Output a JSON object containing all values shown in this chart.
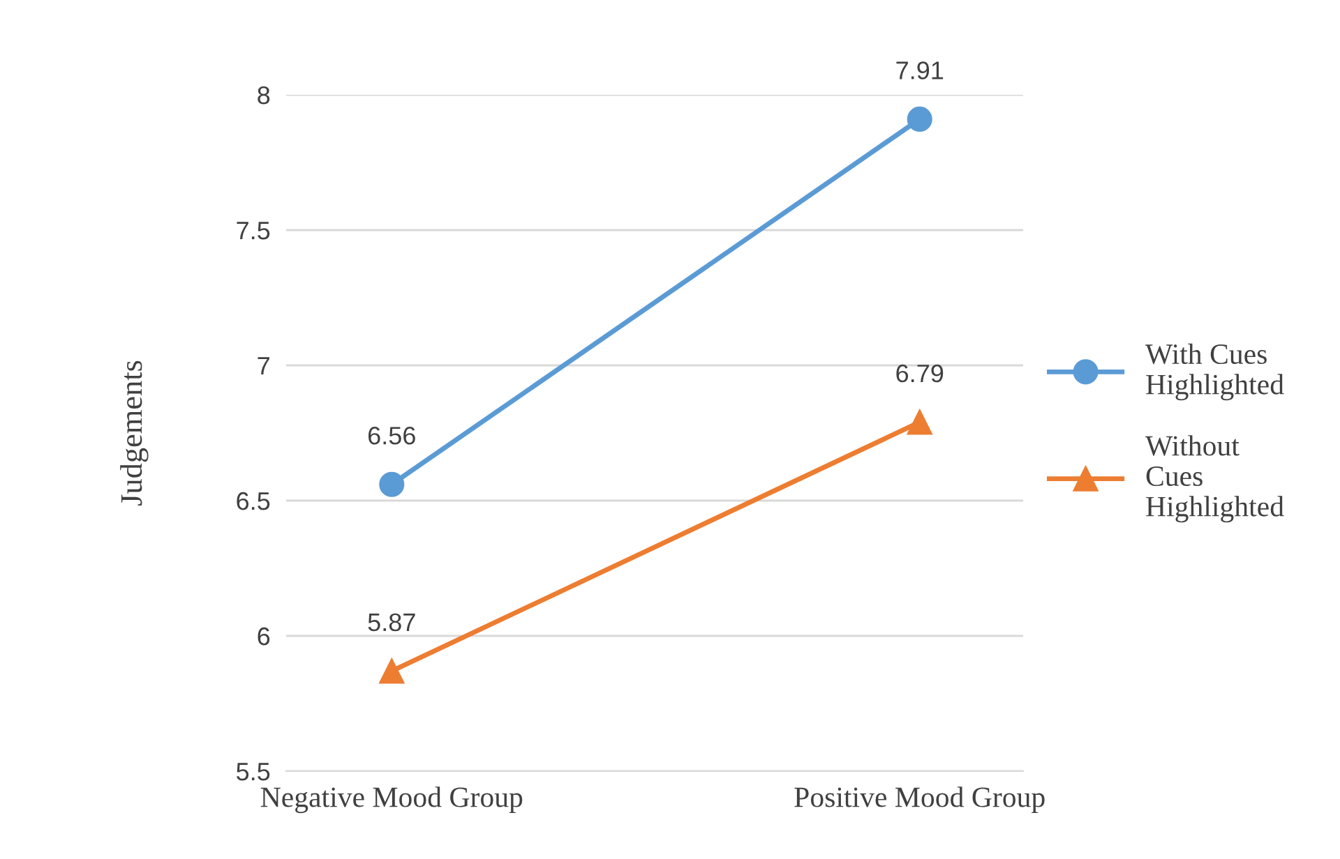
{
  "chart_data": {
    "type": "line",
    "ylabel": "Judgements",
    "categories": [
      "Negative Mood Group",
      "Positive Mood Group"
    ],
    "series": [
      {
        "name": "With Cues Highlighted",
        "color": "#5b9bd5",
        "marker": "circle",
        "values": [
          6.56,
          7.91
        ]
      },
      {
        "name": "Without Cues Highlighted",
        "color": "#ed7d31",
        "marker": "triangle",
        "values": [
          5.87,
          6.79
        ]
      }
    ],
    "ylim": [
      5.5,
      8
    ],
    "yticks": [
      5.5,
      6,
      6.5,
      7,
      7.5,
      8
    ],
    "grid": "y",
    "legend": "right",
    "data_labels": true,
    "line_style": "solid"
  }
}
